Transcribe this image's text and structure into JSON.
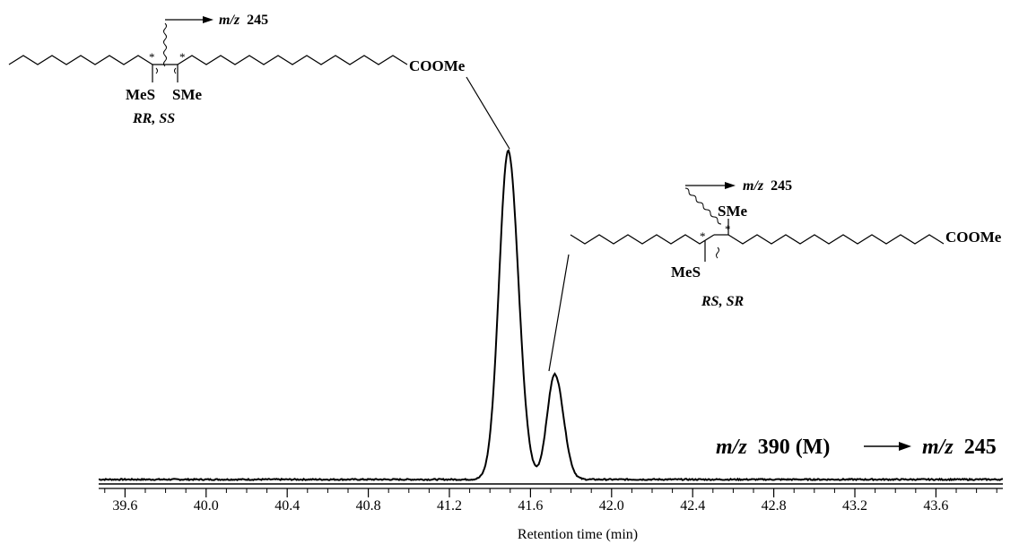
{
  "chart_data": {
    "type": "line",
    "title": "",
    "xlabel": "Retention time (min)",
    "ylabel": "",
    "xlim": [
      39.47,
      43.93
    ],
    "ylim": [
      0,
      1.0
    ],
    "x_ticks": [
      "39.6",
      "40.0",
      "40.4",
      "40.8",
      "41.2",
      "41.6",
      "42.0",
      "42.4",
      "42.8",
      "43.2",
      "43.6"
    ],
    "series": [
      {
        "name": "",
        "peaks": [
          {
            "rt": 41.49,
            "height": 1.0,
            "sigma": 0.045
          },
          {
            "rt": 41.72,
            "height": 0.32,
            "sigma": 0.038
          }
        ],
        "baseline": 0.0
      }
    ],
    "transition": {
      "mz_label": "m/z",
      "precursor": "390 (M)",
      "product": "245"
    },
    "annotations": [
      {
        "peak": 1,
        "chain_group": "COOMe",
        "left_substituent": "MeS",
        "right_substituent": "SMe",
        "stereo_star": "*",
        "stereo_label": "RR, SS",
        "fragment": {
          "mz_label": "m/z",
          "value": "245"
        }
      },
      {
        "peak": 2,
        "chain_group": "COOMe",
        "lower_substituent": "MeS",
        "upper_substituent": "SMe",
        "stereo_star": "*",
        "stereo_label": "RS, SR",
        "fragment": {
          "mz_label": "m/z",
          "value": "245"
        }
      }
    ]
  }
}
